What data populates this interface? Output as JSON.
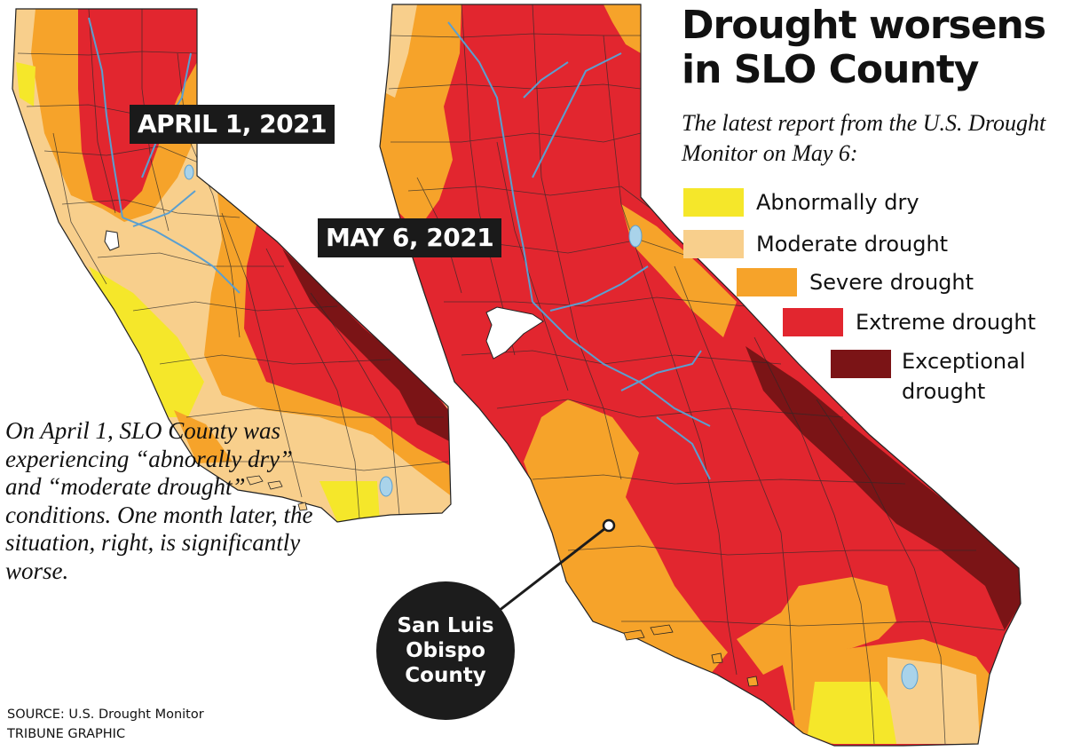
{
  "title": "Drought worsens in SLO County",
  "subtitle": "The latest report from the U.S. Drought Monitor on May 6:",
  "legend": [
    {
      "label": "Abnormally dry",
      "color": "#f5e72a"
    },
    {
      "label": "Moderate drought",
      "color": "#f8cf8c"
    },
    {
      "label": "Severe drought",
      "color": "#f6a32a"
    },
    {
      "label": "Extreme drought",
      "color": "#e2262f"
    },
    {
      "label": "Exceptional drought",
      "color": "#7b1416"
    }
  ],
  "maps": [
    {
      "date_label": "APRIL 1, 2021"
    },
    {
      "date_label": "MAY 6, 2021"
    }
  ],
  "note": "On April 1, SLO County was experiencing “abnorally dry” and “moderate drought” conditions. One month later, the situation, right, is significantly worse.",
  "callout": "San Luis Obispo County",
  "source": "SOURCE: U.S. Drought Monitor",
  "credit": "TRIBUNE GRAPHIC",
  "colors": {
    "water": "#a9d3ea",
    "river": "#5a9fd0",
    "county_line": "#2a2a2a",
    "label_bg": "#1a1a1a"
  }
}
